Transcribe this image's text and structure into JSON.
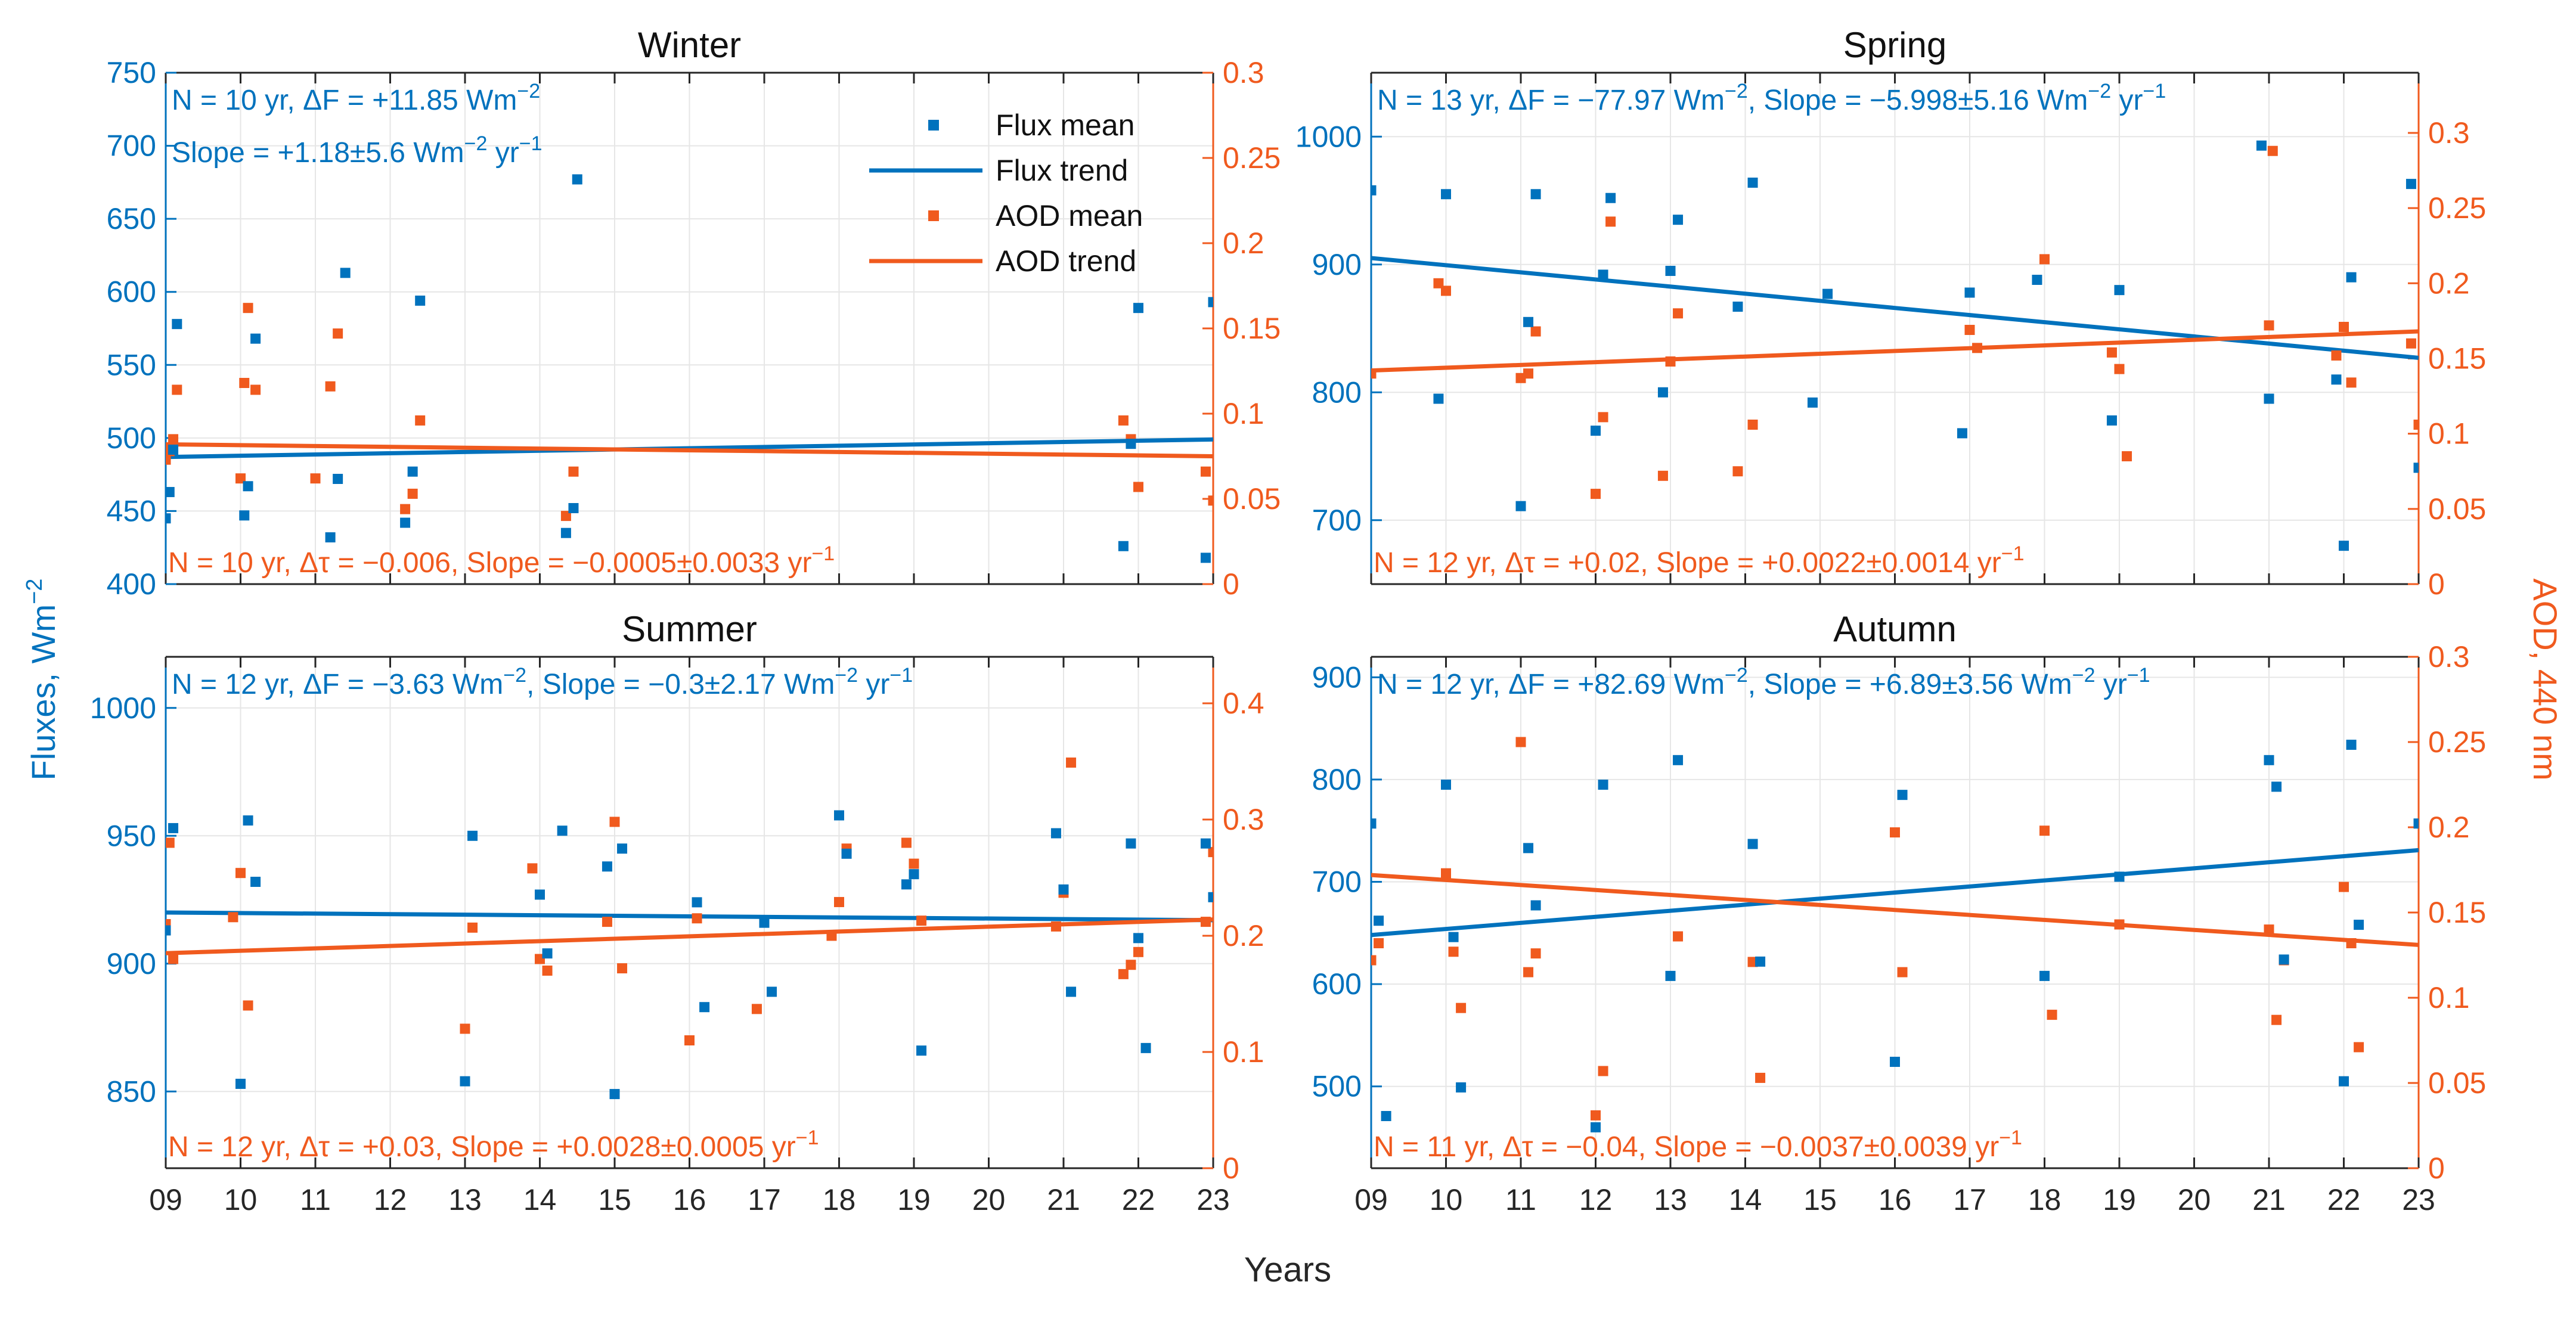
{
  "figure": {
    "left_ylabel": "Fluxes, Wm",
    "left_ylabel_exp": "−2",
    "right_ylabel": "AOD, 440 nm",
    "xlabel": "Years"
  },
  "colors": {
    "flux": "#0072BD",
    "aod": "#F05A1E",
    "grid": "#e6e6e6",
    "axis": "#262626"
  },
  "legend": [
    "Flux mean",
    "Flux trend",
    "AOD mean",
    "AOD trend"
  ],
  "x_tick_labels": [
    "09",
    "10",
    "11",
    "12",
    "13",
    "14",
    "15",
    "16",
    "17",
    "18",
    "19",
    "20",
    "21",
    "22",
    "23"
  ],
  "chart_data": [
    {
      "type": "scatter",
      "title": "Winter",
      "xlim": [
        9,
        23
      ],
      "flux": {
        "ylim": [
          400,
          750
        ],
        "yticks": [
          400,
          450,
          500,
          550,
          600,
          650,
          700,
          750
        ],
        "x": [
          9.0,
          9.05,
          9.1,
          9.15,
          10.05,
          10.1,
          10.2,
          11.2,
          11.3,
          11.4,
          12.2,
          12.3,
          12.4,
          14.35,
          14.45,
          14.5,
          21.8,
          21.9,
          22.0,
          22.9,
          23.0
        ],
        "y": [
          445,
          463,
          492,
          578,
          447,
          467,
          568,
          432,
          472,
          613,
          442,
          477,
          594,
          435,
          452,
          677,
          426,
          496,
          589,
          418,
          593
        ],
        "trend": [
          487,
          499
        ]
      },
      "aod": {
        "ylim": [
          0,
          0.3
        ],
        "yticks": [
          0,
          0.05,
          0.1,
          0.15,
          0.2,
          0.25,
          0.3
        ],
        "x": [
          9.0,
          9.05,
          9.1,
          9.15,
          10.0,
          10.05,
          10.1,
          10.2,
          11.0,
          11.2,
          11.3,
          12.2,
          12.3,
          12.4,
          14.35,
          14.45,
          21.8,
          21.9,
          22.0,
          22.9,
          23.0
        ],
        "y": [
          0.073,
          0.078,
          0.085,
          0.114,
          0.062,
          0.118,
          0.162,
          0.114,
          0.062,
          0.116,
          0.147,
          0.044,
          0.053,
          0.096,
          0.04,
          0.066,
          0.096,
          0.085,
          0.057,
          0.066,
          0.049
        ],
        "trend": [
          0.082,
          0.075
        ]
      },
      "flux_annotation": "N = 10 yr, ΔF = +11.85 Wm",
      "flux_annotation_exp": "−2",
      "flux_slope": "Slope = +1.18±5.6 Wm",
      "flux_slope_exp1": "−2",
      "flux_slope_mid": " yr",
      "flux_slope_exp2": "−1",
      "aod_annotation": "N = 10 yr, Δτ = −0.006, Slope = −0.0005±0.0033 yr",
      "aod_annotation_exp": "−1"
    },
    {
      "type": "scatter",
      "title": "Spring",
      "xlim": [
        9,
        23
      ],
      "flux": {
        "ylim": [
          650,
          1050
        ],
        "yticks": [
          700,
          800,
          900,
          1000
        ],
        "x": [
          9.0,
          9.9,
          10.0,
          11.0,
          11.1,
          11.2,
          12.0,
          12.1,
          12.2,
          12.9,
          13.0,
          13.1,
          13.9,
          14.1,
          14.9,
          15.1,
          16.9,
          17.0,
          17.9,
          18.9,
          19.0,
          20.9,
          21.0,
          21.9,
          22.0,
          22.1,
          22.9,
          23.0
        ],
        "y": [
          958,
          795,
          955,
          711,
          855,
          955,
          770,
          892,
          952,
          800,
          895,
          935,
          867,
          964,
          792,
          877,
          768,
          878,
          888,
          778,
          880,
          993,
          795,
          810,
          680,
          890,
          963,
          741
        ],
        "trend": [
          905,
          827
        ]
      },
      "aod": {
        "ylim": [
          0,
          0.34
        ],
        "yticks": [
          0,
          0.05,
          0.1,
          0.15,
          0.2,
          0.25,
          0.3
        ],
        "x": [
          9.0,
          9.9,
          10.0,
          11.0,
          11.1,
          11.2,
          12.0,
          12.1,
          12.2,
          12.9,
          13.0,
          13.1,
          13.9,
          14.1,
          17.0,
          17.1,
          18.0,
          18.9,
          19.0,
          19.1,
          21.0,
          21.05,
          21.9,
          22.0,
          22.1,
          22.9,
          23.0
        ],
        "y": [
          0.14,
          0.2,
          0.195,
          0.137,
          0.14,
          0.168,
          0.06,
          0.111,
          0.241,
          0.072,
          0.148,
          0.18,
          0.075,
          0.106,
          0.169,
          0.157,
          0.216,
          0.154,
          0.143,
          0.085,
          0.172,
          0.288,
          0.152,
          0.171,
          0.134,
          0.16,
          0.106
        ],
        "trend": [
          0.142,
          0.168
        ]
      },
      "flux_annotation": "N = 13 yr, ΔF = −77.97 Wm",
      "flux_annotation_exp": "−2",
      "flux_slope": ", Slope = −5.998±5.16 Wm",
      "flux_slope_exp1": "−2",
      "flux_slope_mid": " yr",
      "flux_slope_exp2": "−1",
      "aod_annotation": "N = 12 yr, Δτ = +0.02, Slope = +0.0022±0.0014 yr",
      "aod_annotation_exp": "−1"
    },
    {
      "type": "scatter",
      "title": "Summer",
      "xlim": [
        9,
        23
      ],
      "flux": {
        "ylim": [
          820,
          1020
        ],
        "yticks": [
          850,
          900,
          950,
          1000
        ],
        "x": [
          9.0,
          9.1,
          10.0,
          10.1,
          10.2,
          13.0,
          13.1,
          14.0,
          14.1,
          14.3,
          14.9,
          15.0,
          15.1,
          16.1,
          16.2,
          17.0,
          17.1,
          18.0,
          18.1,
          18.9,
          19.0,
          19.1,
          20.9,
          21.0,
          21.1,
          21.9,
          22.0,
          22.1,
          22.9,
          23.0
        ],
        "y": [
          913,
          953,
          853,
          956,
          932,
          854,
          950,
          927,
          904,
          952,
          938,
          849,
          945,
          924,
          883,
          916,
          889,
          958,
          943,
          931,
          935,
          866,
          951,
          929,
          889,
          947,
          910,
          867,
          947,
          926
        ],
        "trend": [
          920,
          917
        ]
      },
      "aod": {
        "ylim": [
          0,
          0.44
        ],
        "yticks": [
          0,
          0.1,
          0.2,
          0.3,
          0.4
        ],
        "x": [
          9.0,
          9.05,
          9.1,
          9.9,
          10.0,
          10.1,
          13.0,
          13.1,
          13.9,
          14.0,
          14.1,
          14.9,
          15.0,
          15.1,
          16.0,
          16.1,
          16.9,
          17.9,
          18.0,
          18.1,
          18.9,
          19.0,
          19.1,
          20.9,
          21.0,
          21.1,
          21.8,
          21.9,
          22.0,
          22.9,
          23.0
        ],
        "y": [
          0.21,
          0.28,
          0.18,
          0.216,
          0.254,
          0.14,
          0.12,
          0.207,
          0.258,
          0.18,
          0.17,
          0.212,
          0.298,
          0.172,
          0.11,
          0.215,
          0.137,
          0.2,
          0.229,
          0.275,
          0.28,
          0.262,
          0.213,
          0.208,
          0.237,
          0.349,
          0.167,
          0.175,
          0.186,
          0.212,
          0.272
        ],
        "trend": [
          0.185,
          0.214
        ]
      },
      "flux_annotation": "N = 12 yr, ΔF = −3.63 Wm",
      "flux_annotation_exp": "−2",
      "flux_slope": ", Slope = −0.3±2.17 Wm",
      "flux_slope_exp1": "−2",
      "flux_slope_mid": " yr",
      "flux_slope_exp2": "−1",
      "aod_annotation": "N = 12 yr, Δτ = +0.03, Slope = +0.0028±0.0005 yr",
      "aod_annotation_exp": "−1"
    },
    {
      "type": "scatter",
      "title": "Autumn",
      "xlim": [
        9,
        23
      ],
      "flux": {
        "ylim": [
          420,
          920
        ],
        "yticks": [
          500,
          600,
          700,
          800,
          900
        ],
        "x": [
          9.0,
          9.1,
          9.2,
          10.0,
          10.1,
          10.2,
          11.1,
          11.2,
          12.0,
          12.1,
          13.0,
          13.1,
          14.1,
          14.2,
          16.0,
          16.1,
          18.0,
          19.0,
          21.0,
          21.1,
          21.2,
          22.0,
          22.1,
          22.2,
          23.0
        ],
        "y": [
          757,
          662,
          471,
          795,
          646,
          499,
          733,
          677,
          460,
          795,
          608,
          819,
          737,
          622,
          524,
          785,
          608,
          705,
          819,
          793,
          624,
          505,
          834,
          658,
          757
        ],
        "trend": [
          648,
          731
        ]
      },
      "aod": {
        "ylim": [
          0,
          0.3
        ],
        "yticks": [
          0,
          0.05,
          0.1,
          0.15,
          0.2,
          0.25,
          0.3
        ],
        "x": [
          9.0,
          9.1,
          10.0,
          10.1,
          10.2,
          11.0,
          11.1,
          11.2,
          12.0,
          12.1,
          13.1,
          14.1,
          14.2,
          16.0,
          16.1,
          18.0,
          18.1,
          19.0,
          21.0,
          21.1,
          21.2,
          22.0,
          22.1,
          22.2
        ],
        "y": [
          0.122,
          0.132,
          0.173,
          0.127,
          0.094,
          0.25,
          0.115,
          0.126,
          0.031,
          0.057,
          0.136,
          0.121,
          0.053,
          0.197,
          0.115,
          0.198,
          0.09,
          0.143,
          0.14,
          0.087,
          0.122,
          0.165,
          0.132,
          0.071
        ],
        "trend": [
          0.172,
          0.131
        ]
      },
      "flux_annotation": "N = 12 yr, ΔF = +82.69 Wm",
      "flux_annotation_exp": "−2",
      "flux_slope": ", Slope = +6.89±3.56 Wm",
      "flux_slope_exp1": "−2",
      "flux_slope_mid": " yr",
      "flux_slope_exp2": "−1",
      "aod_annotation": "N = 11 yr, Δτ = −0.04, Slope = −0.0037±0.0039 yr",
      "aod_annotation_exp": "−1"
    }
  ]
}
